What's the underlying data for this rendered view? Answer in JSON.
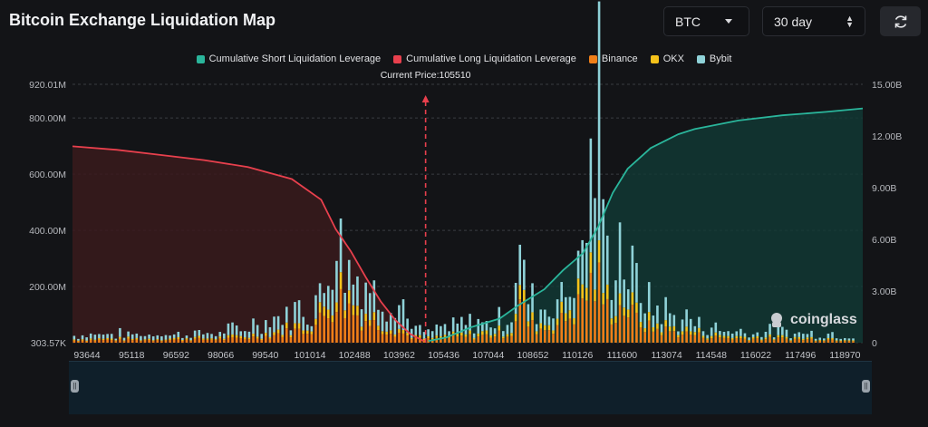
{
  "header": {
    "title": "Bitcoin Exchange Liquidation Map"
  },
  "controls": {
    "symbol": "BTC",
    "range": "30 day"
  },
  "icons": {
    "refresh": "refresh-icon",
    "caret": "chevron-down-icon",
    "updown": "up-down-icon",
    "logo": "coinglass-logo"
  },
  "brand": "coinglass",
  "colors": {
    "short": "#2ab59b",
    "long": "#e8404d",
    "binance": "#f07f18",
    "okx": "#f5c21a",
    "bybit": "#8fd2d8"
  },
  "chart_data": {
    "type": "bar",
    "title": "Bitcoin Exchange Liquidation Map",
    "current_price_label": "Current Price:105510",
    "current_price": 105510,
    "legend": [
      "Cumulative Short Liquidation Leverage",
      "Cumulative Long Liquidation Leverage",
      "Binance",
      "OKX",
      "Bybit"
    ],
    "x_ticks": [
      "93644",
      "95118",
      "96592",
      "98066",
      "99540",
      "101014",
      "102488",
      "103962",
      "105436",
      "107044",
      "108652",
      "110126",
      "111600",
      "113074",
      "114548",
      "116022",
      "117496",
      "118970"
    ],
    "x_range": [
      93644,
      120200
    ],
    "left_axis": {
      "ticks": [
        "303.57K",
        "200.00M",
        "400.00M",
        "600.00M",
        "800.00M",
        "920.01M"
      ],
      "range": [
        0,
        920.01
      ],
      "unit": "M"
    },
    "right_axis": {
      "ticks": [
        "0",
        "3.00B",
        "6.00B",
        "9.00B",
        "12.00B",
        "15.00B"
      ],
      "range": [
        0,
        15
      ],
      "unit": "B"
    },
    "grid": true,
    "legend_position": "top",
    "bars_sample": [
      {
        "price": 93700,
        "binance": 8,
        "okx": 4,
        "bybit": 14
      },
      {
        "price": 94100,
        "binance": 9,
        "okx": 5,
        "bybit": 18
      },
      {
        "price": 94600,
        "binance": 10,
        "okx": 4,
        "bybit": 24
      },
      {
        "price": 95100,
        "binance": 9,
        "okx": 5,
        "bybit": 16
      },
      {
        "price": 95600,
        "binance": 10,
        "okx": 5,
        "bybit": 20
      },
      {
        "price": 96100,
        "binance": 9,
        "okx": 4,
        "bybit": 18
      },
      {
        "price": 96600,
        "binance": 11,
        "okx": 5,
        "bybit": 22
      },
      {
        "price": 97100,
        "binance": 10,
        "okx": 5,
        "bybit": 14
      },
      {
        "price": 97600,
        "binance": 12,
        "okx": 6,
        "bybit": 20
      },
      {
        "price": 98100,
        "binance": 11,
        "okx": 5,
        "bybit": 18
      },
      {
        "price": 98600,
        "binance": 12,
        "okx": 6,
        "bybit": 22
      },
      {
        "price": 99100,
        "binance": 14,
        "okx": 7,
        "bybit": 26
      },
      {
        "price": 99600,
        "binance": 18,
        "okx": 8,
        "bybit": 40
      },
      {
        "price": 100100,
        "binance": 22,
        "okx": 10,
        "bybit": 50
      },
      {
        "price": 100500,
        "binance": 30,
        "okx": 12,
        "bybit": 50
      },
      {
        "price": 101000,
        "binance": 40,
        "okx": 16,
        "bybit": 60
      },
      {
        "price": 101400,
        "binance": 45,
        "okx": 18,
        "bybit": 60
      },
      {
        "price": 101800,
        "binance": 60,
        "okx": 20,
        "bybit": 70
      },
      {
        "price": 102200,
        "binance": 110,
        "okx": 40,
        "bybit": 100
      },
      {
        "price": 102488,
        "binance": 160,
        "okx": 50,
        "bybit": 300
      },
      {
        "price": 102800,
        "binance": 140,
        "okx": 45,
        "bybit": 200
      },
      {
        "price": 103100,
        "binance": 110,
        "okx": 40,
        "bybit": 140
      },
      {
        "price": 103400,
        "binance": 90,
        "okx": 30,
        "bybit": 120
      },
      {
        "price": 103700,
        "binance": 70,
        "okx": 25,
        "bybit": 90
      },
      {
        "price": 103962,
        "binance": 60,
        "okx": 20,
        "bybit": 100
      },
      {
        "price": 104300,
        "binance": 50,
        "okx": 20,
        "bybit": 130
      },
      {
        "price": 104600,
        "binance": 40,
        "okx": 15,
        "bybit": 120
      },
      {
        "price": 104900,
        "binance": 25,
        "okx": 10,
        "bybit": 60
      },
      {
        "price": 105200,
        "binance": 15,
        "okx": 8,
        "bybit": 30
      },
      {
        "price": 105436,
        "binance": 10,
        "okx": 5,
        "bybit": 20
      },
      {
        "price": 105800,
        "binance": 12,
        "okx": 6,
        "bybit": 24
      },
      {
        "price": 106200,
        "binance": 18,
        "okx": 8,
        "bybit": 30
      },
      {
        "price": 106600,
        "binance": 20,
        "okx": 8,
        "bybit": 40
      },
      {
        "price": 107044,
        "binance": 22,
        "okx": 10,
        "bybit": 40
      },
      {
        "price": 107500,
        "binance": 25,
        "okx": 12,
        "bybit": 45
      },
      {
        "price": 108000,
        "binance": 30,
        "okx": 12,
        "bybit": 50
      },
      {
        "price": 108400,
        "binance": 35,
        "okx": 15,
        "bybit": 50
      },
      {
        "price": 108652,
        "binance": 150,
        "okx": 50,
        "bybit": 170
      },
      {
        "price": 109000,
        "binance": 60,
        "okx": 20,
        "bybit": 80
      },
      {
        "price": 109500,
        "binance": 50,
        "okx": 20,
        "bybit": 70
      },
      {
        "price": 110000,
        "binance": 70,
        "okx": 25,
        "bybit": 80
      },
      {
        "price": 110126,
        "binance": 80,
        "okx": 30,
        "bybit": 90
      },
      {
        "price": 110600,
        "binance": 120,
        "okx": 40,
        "bybit": 120
      },
      {
        "price": 111000,
        "binance": 200,
        "okx": 60,
        "bybit": 330
      },
      {
        "price": 111300,
        "binance": 220,
        "okx": 60,
        "bybit": 540
      },
      {
        "price": 111600,
        "binance": 120,
        "okx": 40,
        "bybit": 160
      },
      {
        "price": 111900,
        "binance": 120,
        "okx": 40,
        "bybit": 200
      },
      {
        "price": 112200,
        "binance": 130,
        "okx": 40,
        "bybit": 170
      },
      {
        "price": 112500,
        "binance": 90,
        "okx": 30,
        "bybit": 110
      },
      {
        "price": 112800,
        "binance": 70,
        "okx": 25,
        "bybit": 90
      },
      {
        "price": 113074,
        "binance": 50,
        "okx": 20,
        "bybit": 70
      },
      {
        "price": 113500,
        "binance": 45,
        "okx": 18,
        "bybit": 60
      },
      {
        "price": 114000,
        "binance": 35,
        "okx": 15,
        "bybit": 40
      },
      {
        "price": 114548,
        "binance": 30,
        "okx": 12,
        "bybit": 40
      },
      {
        "price": 115000,
        "binance": 20,
        "okx": 10,
        "bybit": 30
      },
      {
        "price": 115500,
        "binance": 18,
        "okx": 8,
        "bybit": 25
      },
      {
        "price": 116022,
        "binance": 15,
        "okx": 7,
        "bybit": 24
      },
      {
        "price": 116500,
        "binance": 15,
        "okx": 6,
        "bybit": 22
      },
      {
        "price": 117000,
        "binance": 14,
        "okx": 6,
        "bybit": 22
      },
      {
        "price": 117496,
        "binance": 14,
        "okx": 6,
        "bybit": 20
      },
      {
        "price": 118000,
        "binance": 12,
        "okx": 6,
        "bybit": 20
      },
      {
        "price": 118500,
        "binance": 12,
        "okx": 5,
        "bybit": 18
      },
      {
        "price": 118970,
        "binance": 12,
        "okx": 5,
        "bybit": 18
      },
      {
        "price": 119500,
        "binance": 10,
        "okx": 5,
        "bybit": 16
      },
      {
        "price": 120000,
        "binance": 10,
        "okx": 5,
        "bybit": 14
      }
    ],
    "cumulative_long": [
      [
        93644,
        11.4
      ],
      [
        95118,
        11.2
      ],
      [
        96592,
        10.9
      ],
      [
        98066,
        10.6
      ],
      [
        99540,
        10.2
      ],
      [
        101014,
        9.5
      ],
      [
        102000,
        8.3
      ],
      [
        102488,
        6.6
      ],
      [
        103000,
        5.3
      ],
      [
        103500,
        3.8
      ],
      [
        104000,
        2.4
      ],
      [
        104500,
        1.3
      ],
      [
        105000,
        0.5
      ],
      [
        105436,
        0.1
      ]
    ],
    "cumulative_short": [
      [
        105600,
        0.1
      ],
      [
        106200,
        0.3
      ],
      [
        107044,
        0.9
      ],
      [
        108000,
        1.4
      ],
      [
        108652,
        2.2
      ],
      [
        109500,
        3.1
      ],
      [
        110126,
        4.2
      ],
      [
        110800,
        5.2
      ],
      [
        111300,
        6.7
      ],
      [
        111800,
        8.7
      ],
      [
        112300,
        10.1
      ],
      [
        113074,
        11.3
      ],
      [
        114000,
        12.1
      ],
      [
        114548,
        12.4
      ],
      [
        116022,
        12.9
      ],
      [
        117496,
        13.2
      ],
      [
        118970,
        13.4
      ],
      [
        120200,
        13.6
      ]
    ]
  }
}
